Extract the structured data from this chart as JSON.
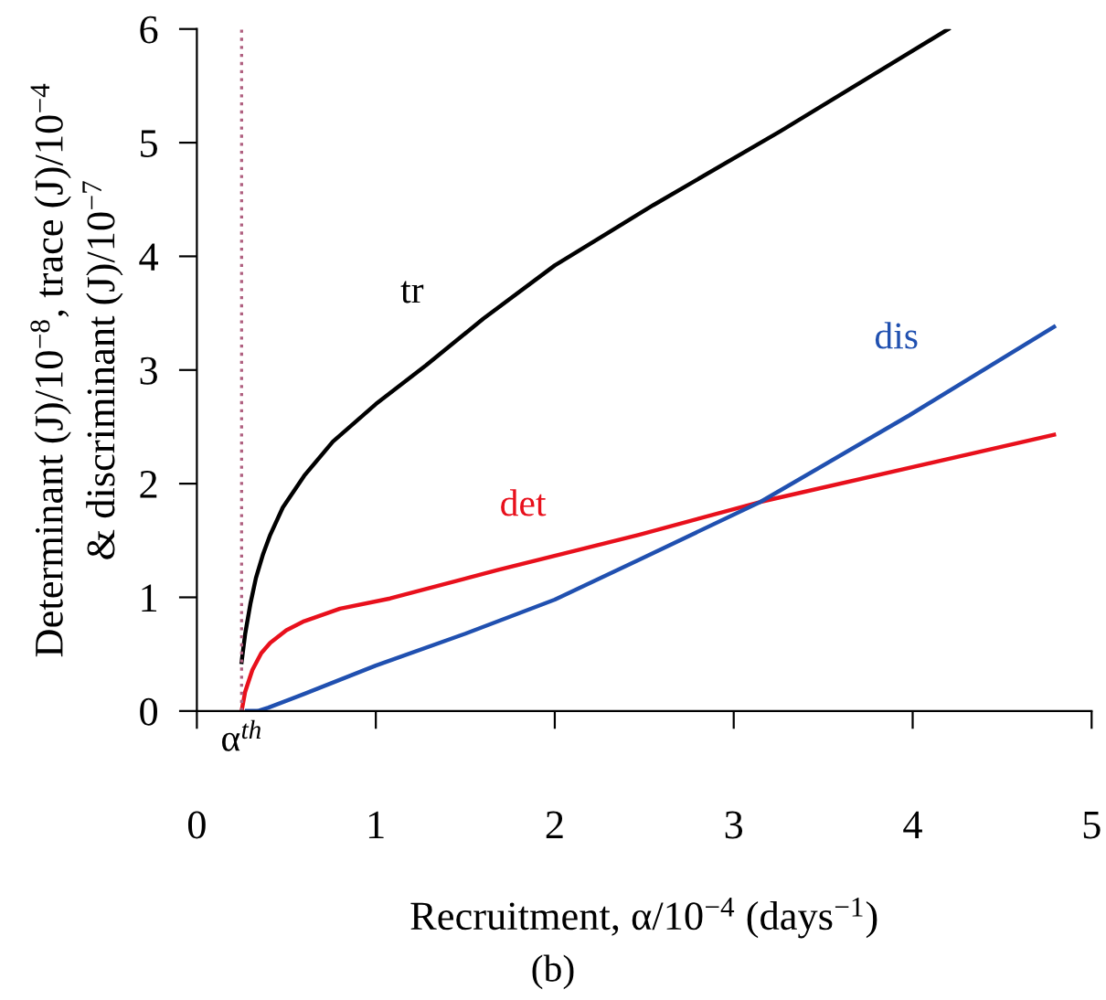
{
  "chart_data": {
    "type": "line",
    "xlabel": "Recruitment, α/10$^{−4}$ (days$^{−1}$)",
    "ylabel": "Determinant (J)/10$^{−8}$, trace (J)/10$^{−4}$\n& discriminant (J)/10$^{−7}$",
    "xlim": [
      0,
      5
    ],
    "ylim": [
      0,
      6
    ],
    "xticks": [
      0,
      1,
      2,
      3,
      4,
      5
    ],
    "yticks": [
      0,
      1,
      2,
      3,
      4,
      5,
      6
    ],
    "grid": false,
    "legend": false,
    "marker": "none",
    "line_style": "solid",
    "ref_lines": [
      {
        "axis": "x",
        "value": 0.25,
        "label": "α$^{th}$",
        "color": "#b06080",
        "line_style": "dotted"
      }
    ],
    "annotations": [
      "(b)"
    ],
    "series": [
      {
        "name": "tr",
        "color": "#000000",
        "x": [
          0.25,
          0.27,
          0.3,
          0.33,
          0.37,
          0.41,
          0.48,
          0.6,
          0.76,
          1.0,
          1.28,
          1.6,
          2.0,
          2.55,
          3.26,
          4.2
        ],
        "values": [
          0.43,
          0.68,
          0.95,
          1.17,
          1.38,
          1.55,
          1.79,
          2.07,
          2.37,
          2.7,
          3.04,
          3.45,
          3.92,
          4.45,
          5.1,
          6.0
        ]
      },
      {
        "name": "det",
        "color": "#e8101c",
        "x": [
          0.25,
          0.27,
          0.31,
          0.36,
          0.41,
          0.5,
          0.6,
          0.8,
          1.08,
          1.68,
          2.47,
          3.15,
          4.79
        ],
        "values": [
          0,
          0.17,
          0.36,
          0.51,
          0.6,
          0.71,
          0.79,
          0.9,
          0.99,
          1.24,
          1.55,
          1.84,
          2.43
        ]
      },
      {
        "name": "dis",
        "color": "#2050b0",
        "x": [
          0.28,
          0.34,
          0.4,
          0.6,
          1.0,
          1.5,
          2.0,
          2.47,
          3.15,
          3.98,
          4.79
        ],
        "values": [
          0,
          0.0,
          0.03,
          0.15,
          0.4,
          0.68,
          0.98,
          1.33,
          1.84,
          2.6,
          3.38
        ]
      }
    ]
  }
}
